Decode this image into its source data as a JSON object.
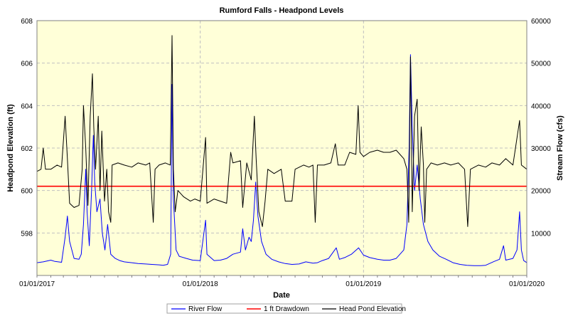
{
  "chart_data": {
    "type": "line",
    "title": "Rumford Falls - Headpond Levels",
    "xlabel": "Date",
    "ylabel_left": "Headpond Elevation (ft)",
    "ylabel_right": "Stream Flow (cfs)",
    "x_range": [
      "2017-01-01",
      "2020-01-01"
    ],
    "x_ticks": [
      "01/01/2017",
      "01/01/2018",
      "01/01/2019",
      "01/01/2020"
    ],
    "y_left_range": [
      596,
      608
    ],
    "y_left_ticks": [
      "598",
      "600",
      "602",
      "604",
      "606",
      "608"
    ],
    "y_right_range": [
      0,
      60000
    ],
    "y_right_ticks": [
      "10000",
      "20000",
      "30000",
      "40000",
      "50000",
      "60000"
    ],
    "grid": true,
    "legend_position": "bottom",
    "colors": {
      "river_flow": "#0000ff",
      "drawdown": "#ff0000",
      "head_pond": "#000000",
      "plot_background": "#ffffd8",
      "grid": "#c0c0c0"
    },
    "series": [
      {
        "name": "River Flow",
        "axis": "right",
        "points": [
          [
            "2017-01-01",
            3000
          ],
          [
            "2017-01-15",
            3200
          ],
          [
            "2017-02-01",
            3600
          ],
          [
            "2017-02-10",
            3300
          ],
          [
            "2017-02-25",
            3100
          ],
          [
            "2017-03-05",
            9000
          ],
          [
            "2017-03-10",
            14000
          ],
          [
            "2017-03-15",
            8000
          ],
          [
            "2017-03-25",
            4000
          ],
          [
            "2017-04-05",
            3800
          ],
          [
            "2017-04-10",
            5000
          ],
          [
            "2017-04-15",
            12000
          ],
          [
            "2017-04-20",
            25000
          ],
          [
            "2017-04-23",
            15000
          ],
          [
            "2017-04-28",
            7000
          ],
          [
            "2017-05-03",
            20000
          ],
          [
            "2017-05-07",
            33000
          ],
          [
            "2017-05-10",
            22000
          ],
          [
            "2017-05-15",
            15000
          ],
          [
            "2017-05-22",
            18000
          ],
          [
            "2017-05-27",
            10000
          ],
          [
            "2017-06-02",
            6000
          ],
          [
            "2017-06-08",
            12000
          ],
          [
            "2017-06-15",
            5000
          ],
          [
            "2017-06-25",
            4000
          ],
          [
            "2017-07-05",
            3500
          ],
          [
            "2017-07-15",
            3200
          ],
          [
            "2017-08-01",
            3000
          ],
          [
            "2017-08-15",
            2800
          ],
          [
            "2017-09-01",
            2700
          ],
          [
            "2017-09-15",
            2600
          ],
          [
            "2017-10-01",
            2500
          ],
          [
            "2017-10-10",
            2400
          ],
          [
            "2017-10-20",
            2600
          ],
          [
            "2017-10-27",
            5000
          ],
          [
            "2017-10-30",
            45000
          ],
          [
            "2017-11-02",
            18000
          ],
          [
            "2017-11-08",
            6000
          ],
          [
            "2017-11-15",
            4500
          ],
          [
            "2017-12-01",
            4000
          ],
          [
            "2017-12-15",
            3600
          ],
          [
            "2018-01-01",
            3500
          ],
          [
            "2018-01-13",
            13000
          ],
          [
            "2018-01-16",
            5000
          ],
          [
            "2018-02-01",
            3500
          ],
          [
            "2018-02-15",
            3600
          ],
          [
            "2018-03-01",
            4000
          ],
          [
            "2018-03-15",
            5000
          ],
          [
            "2018-04-01",
            5500
          ],
          [
            "2018-04-06",
            11000
          ],
          [
            "2018-04-12",
            6000
          ],
          [
            "2018-04-20",
            9000
          ],
          [
            "2018-04-25",
            8000
          ],
          [
            "2018-04-30",
            13000
          ],
          [
            "2018-05-05",
            22000
          ],
          [
            "2018-05-10",
            14000
          ],
          [
            "2018-05-18",
            8000
          ],
          [
            "2018-05-28",
            5000
          ],
          [
            "2018-06-10",
            3800
          ],
          [
            "2018-06-25",
            3200
          ],
          [
            "2018-07-10",
            2800
          ],
          [
            "2018-07-25",
            2600
          ],
          [
            "2018-08-10",
            2700
          ],
          [
            "2018-08-25",
            3200
          ],
          [
            "2018-09-10",
            2900
          ],
          [
            "2018-09-20",
            3000
          ],
          [
            "2018-10-01",
            3500
          ],
          [
            "2018-10-15",
            4000
          ],
          [
            "2018-11-01",
            6500
          ],
          [
            "2018-11-08",
            3800
          ],
          [
            "2018-11-20",
            4200
          ],
          [
            "2018-12-05",
            5000
          ],
          [
            "2018-12-21",
            6500
          ],
          [
            "2019-01-01",
            4800
          ],
          [
            "2019-01-15",
            4200
          ],
          [
            "2019-02-01",
            3800
          ],
          [
            "2019-02-15",
            3600
          ],
          [
            "2019-03-01",
            3600
          ],
          [
            "2019-03-15",
            4000
          ],
          [
            "2019-04-01",
            6000
          ],
          [
            "2019-04-08",
            12000
          ],
          [
            "2019-04-13",
            30000
          ],
          [
            "2019-04-16",
            52000
          ],
          [
            "2019-04-20",
            35000
          ],
          [
            "2019-04-25",
            20000
          ],
          [
            "2019-05-01",
            26000
          ],
          [
            "2019-05-08",
            18000
          ],
          [
            "2019-05-15",
            12000
          ],
          [
            "2019-05-25",
            8000
          ],
          [
            "2019-06-05",
            6000
          ],
          [
            "2019-06-20",
            4500
          ],
          [
            "2019-07-05",
            3800
          ],
          [
            "2019-07-20",
            3000
          ],
          [
            "2019-08-05",
            2600
          ],
          [
            "2019-08-20",
            2400
          ],
          [
            "2019-09-05",
            2300
          ],
          [
            "2019-09-20",
            2300
          ],
          [
            "2019-10-01",
            2400
          ],
          [
            "2019-10-20",
            3300
          ],
          [
            "2019-11-01",
            3800
          ],
          [
            "2019-11-10",
            7000
          ],
          [
            "2019-11-15",
            3600
          ],
          [
            "2019-12-01",
            4000
          ],
          [
            "2019-12-10",
            6000
          ],
          [
            "2019-12-16",
            15000
          ],
          [
            "2019-12-20",
            6000
          ],
          [
            "2019-12-25",
            3500
          ],
          [
            "2020-01-01",
            3000
          ]
        ]
      },
      {
        "name": "1 ft Drawdown",
        "axis": "left",
        "points": [
          [
            "2017-01-01",
            600.2
          ],
          [
            "2020-01-01",
            600.2
          ]
        ]
      },
      {
        "name": "Head Pond Elevation",
        "axis": "left",
        "points": [
          [
            "2017-01-01",
            600.9
          ],
          [
            "2017-01-10",
            601.0
          ],
          [
            "2017-01-15",
            602.0
          ],
          [
            "2017-01-20",
            601.0
          ],
          [
            "2017-02-01",
            601.0
          ],
          [
            "2017-02-15",
            601.2
          ],
          [
            "2017-02-25",
            601.1
          ],
          [
            "2017-03-05",
            603.5
          ],
          [
            "2017-03-10",
            601.5
          ],
          [
            "2017-03-15",
            599.4
          ],
          [
            "2017-03-25",
            599.2
          ],
          [
            "2017-04-05",
            599.3
          ],
          [
            "2017-04-12",
            601.0
          ],
          [
            "2017-04-15",
            604.0
          ],
          [
            "2017-04-20",
            602.0
          ],
          [
            "2017-04-25",
            599.3
          ],
          [
            "2017-04-30",
            603.5
          ],
          [
            "2017-05-05",
            605.5
          ],
          [
            "2017-05-08",
            603.0
          ],
          [
            "2017-05-12",
            601.0
          ],
          [
            "2017-05-18",
            603.5
          ],
          [
            "2017-05-22",
            600.0
          ],
          [
            "2017-05-26",
            602.8
          ],
          [
            "2017-06-01",
            599.5
          ],
          [
            "2017-06-06",
            601.0
          ],
          [
            "2017-06-10",
            599.0
          ],
          [
            "2017-06-15",
            598.5
          ],
          [
            "2017-06-18",
            601.2
          ],
          [
            "2017-07-01",
            601.3
          ],
          [
            "2017-07-15",
            601.2
          ],
          [
            "2017-08-01",
            601.1
          ],
          [
            "2017-08-15",
            601.3
          ],
          [
            "2017-09-01",
            601.2
          ],
          [
            "2017-09-10",
            601.3
          ],
          [
            "2017-09-18",
            598.5
          ],
          [
            "2017-09-22",
            601.0
          ],
          [
            "2017-10-01",
            601.2
          ],
          [
            "2017-10-15",
            601.3
          ],
          [
            "2017-10-26",
            601.2
          ],
          [
            "2017-10-30",
            607.3
          ],
          [
            "2017-11-02",
            601.0
          ],
          [
            "2017-11-06",
            599.0
          ],
          [
            "2017-11-12",
            600.0
          ],
          [
            "2017-11-25",
            599.7
          ],
          [
            "2017-12-10",
            599.5
          ],
          [
            "2017-12-20",
            599.6
          ],
          [
            "2018-01-01",
            599.5
          ],
          [
            "2018-01-13",
            602.5
          ],
          [
            "2018-01-16",
            599.4
          ],
          [
            "2018-02-01",
            599.6
          ],
          [
            "2018-02-15",
            599.5
          ],
          [
            "2018-03-01",
            599.4
          ],
          [
            "2018-03-10",
            601.8
          ],
          [
            "2018-03-15",
            601.3
          ],
          [
            "2018-04-01",
            601.4
          ],
          [
            "2018-04-06",
            599.2
          ],
          [
            "2018-04-15",
            601.3
          ],
          [
            "2018-04-25",
            600.5
          ],
          [
            "2018-05-02",
            603.5
          ],
          [
            "2018-05-06",
            601.5
          ],
          [
            "2018-05-12",
            599.0
          ],
          [
            "2018-05-20",
            598.3
          ],
          [
            "2018-05-26",
            599.5
          ],
          [
            "2018-06-01",
            601.0
          ],
          [
            "2018-06-15",
            600.8
          ],
          [
            "2018-07-01",
            601.0
          ],
          [
            "2018-07-10",
            599.5
          ],
          [
            "2018-07-25",
            599.5
          ],
          [
            "2018-08-01",
            601.0
          ],
          [
            "2018-08-20",
            601.2
          ],
          [
            "2018-09-01",
            601.1
          ],
          [
            "2018-09-10",
            601.2
          ],
          [
            "2018-09-15",
            598.5
          ],
          [
            "2018-09-20",
            601.2
          ],
          [
            "2018-10-05",
            601.2
          ],
          [
            "2018-10-20",
            601.3
          ],
          [
            "2018-10-30",
            602.2
          ],
          [
            "2018-11-05",
            601.2
          ],
          [
            "2018-11-20",
            601.2
          ],
          [
            "2018-12-01",
            601.8
          ],
          [
            "2018-12-15",
            601.7
          ],
          [
            "2018-12-20",
            604.0
          ],
          [
            "2018-12-24",
            601.8
          ],
          [
            "2019-01-01",
            601.6
          ],
          [
            "2019-01-15",
            601.8
          ],
          [
            "2019-02-01",
            601.9
          ],
          [
            "2019-02-15",
            601.8
          ],
          [
            "2019-03-01",
            601.8
          ],
          [
            "2019-03-15",
            601.9
          ],
          [
            "2019-04-01",
            601.5
          ],
          [
            "2019-04-08",
            601.0
          ],
          [
            "2019-04-12",
            598.5
          ],
          [
            "2019-04-16",
            606.3
          ],
          [
            "2019-04-20",
            599.0
          ],
          [
            "2019-04-25",
            603.5
          ],
          [
            "2019-05-01",
            604.3
          ],
          [
            "2019-05-05",
            600.0
          ],
          [
            "2019-05-10",
            603.0
          ],
          [
            "2019-05-15",
            601.2
          ],
          [
            "2019-05-18",
            598.5
          ],
          [
            "2019-05-22",
            601.0
          ],
          [
            "2019-06-01",
            601.3
          ],
          [
            "2019-06-15",
            601.2
          ],
          [
            "2019-07-01",
            601.3
          ],
          [
            "2019-07-15",
            601.2
          ],
          [
            "2019-08-01",
            601.3
          ],
          [
            "2019-08-15",
            601.0
          ],
          [
            "2019-08-22",
            598.3
          ],
          [
            "2019-08-28",
            601.0
          ],
          [
            "2019-09-15",
            601.2
          ],
          [
            "2019-10-01",
            601.1
          ],
          [
            "2019-10-15",
            601.3
          ],
          [
            "2019-11-01",
            601.2
          ],
          [
            "2019-11-15",
            601.5
          ],
          [
            "2019-12-01",
            601.2
          ],
          [
            "2019-12-16",
            603.3
          ],
          [
            "2019-12-20",
            601.2
          ],
          [
            "2020-01-01",
            601.0
          ]
        ]
      }
    ],
    "legend": [
      "River Flow",
      "1 ft Drawdown",
      "Head Pond Elevation"
    ]
  }
}
